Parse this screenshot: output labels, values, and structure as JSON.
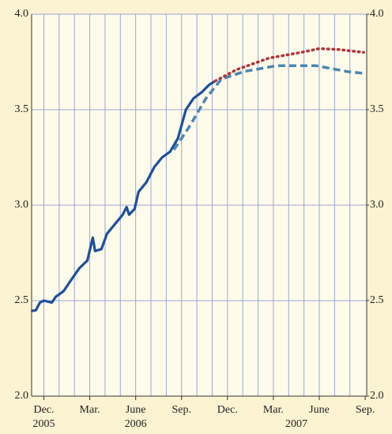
{
  "chart_data": {
    "type": "line",
    "xlim": [
      -0.8,
      21.1
    ],
    "xticks": [
      {
        "value": 0,
        "label": "Dec."
      },
      {
        "value": 3,
        "label": "Mar."
      },
      {
        "value": 6,
        "label": "June"
      },
      {
        "value": 9,
        "label": "Sep."
      },
      {
        "value": 12,
        "label": "Dec."
      },
      {
        "value": 15,
        "label": "Mar."
      },
      {
        "value": 18,
        "label": "June"
      },
      {
        "value": 21,
        "label": "Sep."
      }
    ],
    "year_labels": [
      {
        "value": 0,
        "label": "2005"
      },
      {
        "value": 6,
        "label": "2006"
      },
      {
        "value": 16.5,
        "label": "2007"
      }
    ],
    "month_grid": [
      -0.5,
      20.5
    ],
    "ylim": [
      2,
      4
    ],
    "yticks": [
      {
        "value": 2,
        "label": "2.0"
      },
      {
        "value": 2.5,
        "label": "2.5"
      },
      {
        "value": 3,
        "label": "3.0"
      },
      {
        "value": 3.5,
        "label": "3.5"
      },
      {
        "value": 4,
        "label": "4.0"
      }
    ],
    "y2lim": [
      2,
      4
    ],
    "y2ticks": [
      {
        "value": 2,
        "label": "2.0"
      },
      {
        "value": 2.5,
        "label": "2.5"
      },
      {
        "value": 3,
        "label": "3.0"
      },
      {
        "value": 3.5,
        "label": "3.5"
      },
      {
        "value": 4,
        "label": "4.0"
      }
    ],
    "grid": true,
    "series": [
      {
        "color": "#1d4f9e",
        "style": "solid",
        "x": [
          -0.77,
          -0.52,
          -0.26,
          0,
          0.52,
          0.77,
          1.29,
          1.8,
          2.32,
          2.84,
          3.2,
          3.35,
          3.76,
          4.12,
          4.64,
          5.15,
          5.41,
          5.57,
          5.93,
          6.19,
          6.7,
          7.22,
          7.73,
          8.25,
          8.76,
          9.28,
          9.79,
          10.3,
          10.8,
          11.2
        ],
        "values": [
          2.446,
          2.45,
          2.49,
          2.5,
          2.49,
          2.52,
          2.55,
          2.61,
          2.67,
          2.71,
          2.83,
          2.76,
          2.77,
          2.85,
          2.9,
          2.95,
          2.99,
          2.95,
          2.98,
          3.07,
          3.12,
          3.2,
          3.25,
          3.28,
          3.35,
          3.5,
          3.56,
          3.59,
          3.63,
          3.65
        ]
      },
      {
        "color": "#4a87b3",
        "style": "dashed",
        "x": [
          8.5,
          9.5,
          10.6,
          11.6,
          13.1,
          15.2,
          17.8,
          19.8,
          20.9
        ],
        "values": [
          3.29,
          3.41,
          3.56,
          3.66,
          3.7,
          3.73,
          3.73,
          3.7,
          3.69
        ]
      },
      {
        "color": "#b0343a",
        "style": "dotted",
        "x": [
          11.2,
          12.6,
          14.7,
          16.8,
          18,
          19.3,
          20.9
        ],
        "values": [
          3.65,
          3.71,
          3.77,
          3.8,
          3.82,
          3.815,
          3.8
        ]
      }
    ]
  }
}
